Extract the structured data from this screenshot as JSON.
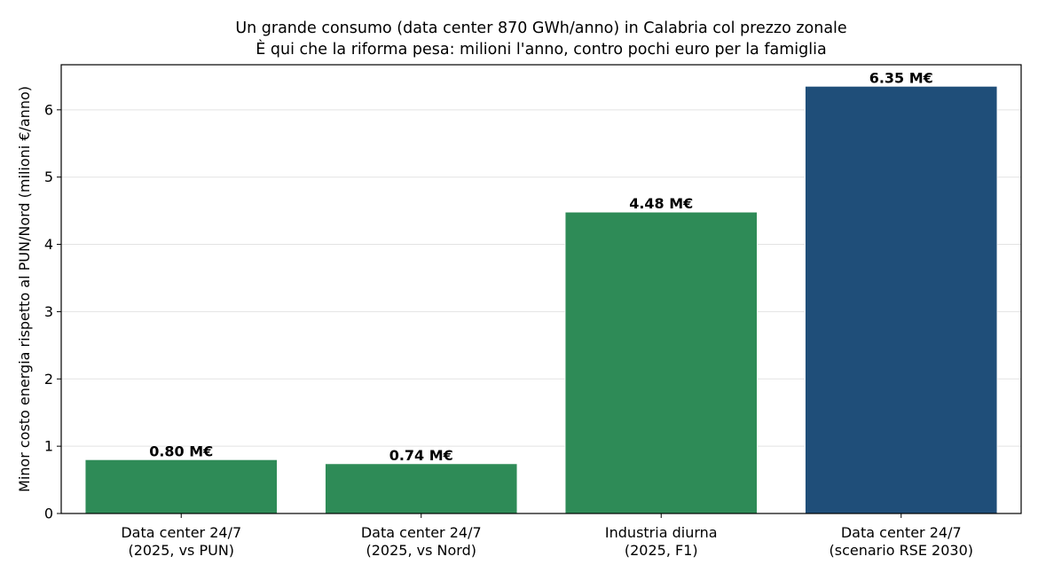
{
  "chart_data": {
    "type": "bar",
    "title_lines": [
      "Un grande consumo (data center 870 GWh/anno) in Calabria col prezzo zonale",
      "È qui che la riforma pesa: milioni l'anno, contro pochi euro per la famiglia"
    ],
    "xlabel": "",
    "ylabel": "Minor costo energia rispetto al PUN/Nord (milioni €/anno)",
    "categories": [
      [
        "Data center 24/7",
        "(2025, vs PUN)"
      ],
      [
        "Data center 24/7",
        "(2025, vs Nord)"
      ],
      [
        "Industria diurna",
        "(2025, F1)"
      ],
      [
        "Data center 24/7",
        "(scenario RSE 2030)"
      ]
    ],
    "values": [
      0.8,
      0.74,
      4.48,
      6.35
    ],
    "value_labels": [
      "0.80 M€",
      "0.74 M€",
      "4.48 M€",
      "6.35 M€"
    ],
    "bar_colors": [
      "#2e8b57",
      "#2e8b57",
      "#2e8b57",
      "#1f4e79"
    ],
    "ylim": [
      0,
      6.67
    ],
    "yticks": [
      0,
      1,
      2,
      3,
      4,
      5,
      6
    ],
    "grid": "horizontal",
    "legend": "none"
  }
}
